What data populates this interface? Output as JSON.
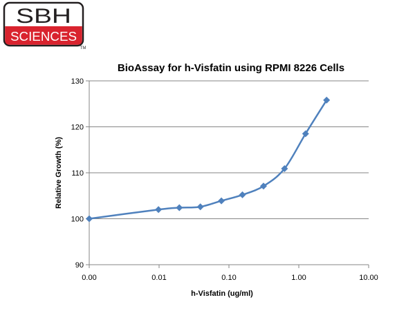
{
  "logo": {
    "top_text": "SBH",
    "bottom_text": "SCIENCES",
    "mark": "TM",
    "colors": {
      "red": "#d9232e",
      "black": "#231f20",
      "white": "#ffffff"
    }
  },
  "chart_data": {
    "type": "line",
    "title": "BioAssay for h-Visfatin using RPMI 8226 Cells",
    "xlabel": "h-Visfatin (ug/ml)",
    "ylabel": "Relative Growth (%)",
    "x_scale": "log",
    "x_ticks": [
      0.001,
      0.01,
      0.1,
      1,
      10
    ],
    "x_tick_labels": [
      "0.00",
      "0.01",
      "0.10",
      "1.00",
      "10.00"
    ],
    "ylim": [
      90,
      130
    ],
    "y_ticks": [
      90,
      100,
      110,
      120,
      130
    ],
    "y_tick_labels": [
      "90",
      "100",
      "110",
      "120",
      "130"
    ],
    "grid": {
      "horizontal": true,
      "vertical": false
    },
    "legend": "none",
    "line_color": "#4f81bd",
    "series": [
      {
        "x": [
          0.001,
          0.0098,
          0.0195,
          0.039,
          0.078,
          0.156,
          0.3125,
          0.625,
          1.25,
          2.5
        ],
        "y": [
          100.0,
          102.0,
          102.4,
          102.6,
          103.9,
          105.2,
          107.1,
          110.9,
          118.5,
          125.8
        ]
      }
    ]
  }
}
